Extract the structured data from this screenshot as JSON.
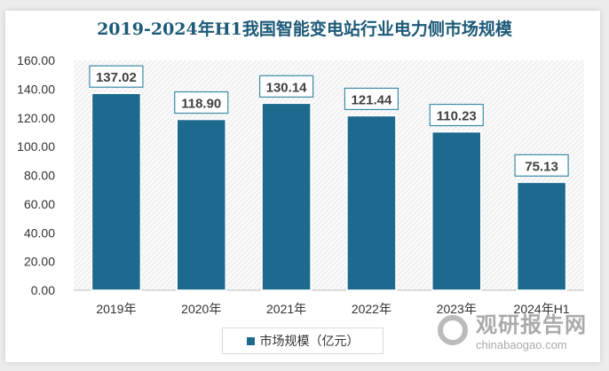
{
  "chart_data": {
    "type": "bar",
    "title": "2019-2024年H1我国智能变电站行业电力侧市场规模",
    "categories": [
      "2019年",
      "2020年",
      "2021年",
      "2022年",
      "2023年",
      "2024年H1"
    ],
    "series": [
      {
        "name": "市场规模（亿元）",
        "values": [
          137.02,
          118.9,
          130.14,
          121.44,
          110.23,
          75.13
        ]
      }
    ],
    "data_labels": [
      "137.02",
      "118.90",
      "130.14",
      "121.44",
      "110.23",
      "75.13"
    ],
    "ylim": [
      0,
      160
    ],
    "yticks": [
      "0.00",
      "20.00",
      "40.00",
      "60.00",
      "80.00",
      "100.00",
      "120.00",
      "140.00",
      "160.00"
    ],
    "legend": "bottom",
    "bar_color": "#1d6a8e"
  },
  "watermark": {
    "name": "观研报告网",
    "url": "chinabaogao.com"
  }
}
